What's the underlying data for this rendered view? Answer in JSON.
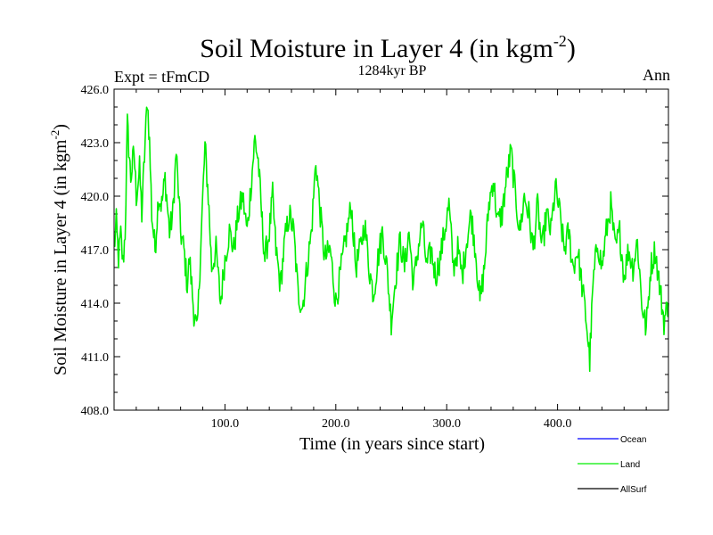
{
  "chart_data": {
    "type": "line",
    "title": "Soil Moisture in Layer 4 (in kgm",
    "title_sup": "-2",
    "title_close": ")",
    "subtitle": "1284kyr BP",
    "left_label": "Expt = tFmCD",
    "right_label": "Ann",
    "xlabel": "Time (in years since start)",
    "ylabel": "Soil Moisture in Layer 4 (in kgm",
    "ylabel_sup": "-2",
    "ylabel_close": ")",
    "xlim": [
      0,
      500
    ],
    "ylim": [
      408,
      426
    ],
    "x_ticks": [
      100,
      200,
      300,
      400
    ],
    "x_tick_labels": [
      "100.0",
      "200.0",
      "300.0",
      "400.0"
    ],
    "y_ticks": [
      408,
      411,
      414,
      417,
      420,
      423,
      426
    ],
    "y_tick_labels": [
      "408.0",
      "411.0",
      "414.0",
      "417.0",
      "420.0",
      "423.0",
      "426.0"
    ],
    "legend": [
      {
        "name": "Ocean",
        "color": "#0000ff"
      },
      {
        "name": "Land",
        "color": "#00ee00"
      },
      {
        "name": "AllSurf",
        "color": "#000000"
      }
    ],
    "series": [
      {
        "name": "Land",
        "color": "#00ee00",
        "x_start": 0,
        "x_end": 500,
        "anchors": [
          [
            0,
            417.0
          ],
          [
            2,
            418.5
          ],
          [
            4,
            416.5
          ],
          [
            6,
            417.8
          ],
          [
            8,
            416.2
          ],
          [
            10,
            418.0
          ],
          [
            12,
            424.0
          ],
          [
            15,
            421.0
          ],
          [
            18,
            422.5
          ],
          [
            20,
            420.0
          ],
          [
            23,
            421.5
          ],
          [
            25,
            419.0
          ],
          [
            28,
            423.0
          ],
          [
            30,
            425.5
          ],
          [
            32,
            423.0
          ],
          [
            34,
            419.0
          ],
          [
            37,
            417.0
          ],
          [
            40,
            420.0
          ],
          [
            43,
            419.5
          ],
          [
            46,
            421.0
          ],
          [
            50,
            418.0
          ],
          [
            53,
            419.0
          ],
          [
            56,
            422.5
          ],
          [
            60,
            418.0
          ],
          [
            63,
            417.0
          ],
          [
            66,
            415.0
          ],
          [
            68,
            416.5
          ],
          [
            72,
            413.5
          ],
          [
            75,
            412.3
          ],
          [
            78,
            417.0
          ],
          [
            82,
            422.8
          ],
          [
            85,
            420.0
          ],
          [
            88,
            416.0
          ],
          [
            92,
            417.0
          ],
          [
            96,
            414.0
          ],
          [
            100,
            416.5
          ],
          [
            104,
            418.0
          ],
          [
            108,
            417.0
          ],
          [
            112,
            419.0
          ],
          [
            116,
            420.0
          ],
          [
            120,
            418.0
          ],
          [
            124,
            421.0
          ],
          [
            127,
            423.2
          ],
          [
            130,
            422.0
          ],
          [
            133,
            419.0
          ],
          [
            136,
            416.5
          ],
          [
            140,
            418.0
          ],
          [
            143,
            420.0
          ],
          [
            146,
            417.0
          ],
          [
            150,
            415.0
          ],
          [
            154,
            417.5
          ],
          [
            158,
            419.0
          ],
          [
            162,
            418.0
          ],
          [
            166,
            414.5
          ],
          [
            170,
            413.8
          ],
          [
            174,
            416.0
          ],
          [
            178,
            418.0
          ],
          [
            182,
            422.0
          ],
          [
            186,
            419.0
          ],
          [
            190,
            416.5
          ],
          [
            195,
            417.0
          ],
          [
            200,
            414.0
          ],
          [
            205,
            416.0
          ],
          [
            210,
            418.0
          ],
          [
            214,
            419.5
          ],
          [
            218,
            416.0
          ],
          [
            222,
            417.0
          ],
          [
            226,
            418.5
          ],
          [
            230,
            416.0
          ],
          [
            234,
            414.5
          ],
          [
            238,
            416.5
          ],
          [
            242,
            418.0
          ],
          [
            246,
            416.0
          ],
          [
            250,
            413.0
          ],
          [
            254,
            415.5
          ],
          [
            258,
            417.5
          ],
          [
            262,
            416.0
          ],
          [
            266,
            418.0
          ],
          [
            270,
            415.0
          ],
          [
            274,
            417.0
          ],
          [
            278,
            418.5
          ],
          [
            282,
            416.0
          ],
          [
            286,
            417.0
          ],
          [
            290,
            415.5
          ],
          [
            294,
            416.5
          ],
          [
            298,
            418.0
          ],
          [
            302,
            419.5
          ],
          [
            306,
            416.0
          ],
          [
            310,
            417.0
          ],
          [
            314,
            415.5
          ],
          [
            318,
            417.5
          ],
          [
            322,
            419.0
          ],
          [
            326,
            417.0
          ],
          [
            330,
            414.0
          ],
          [
            334,
            416.0
          ],
          [
            338,
            419.5
          ],
          [
            342,
            421.0
          ],
          [
            346,
            418.5
          ],
          [
            350,
            419.0
          ],
          [
            354,
            421.0
          ],
          [
            358,
            422.5
          ],
          [
            362,
            420.0
          ],
          [
            366,
            418.0
          ],
          [
            370,
            420.0
          ],
          [
            374,
            419.0
          ],
          [
            378,
            417.0
          ],
          [
            382,
            419.5
          ],
          [
            386,
            417.0
          ],
          [
            390,
            419.0
          ],
          [
            394,
            418.0
          ],
          [
            398,
            420.5
          ],
          [
            402,
            419.0
          ],
          [
            406,
            417.0
          ],
          [
            410,
            418.0
          ],
          [
            414,
            416.0
          ],
          [
            418,
            417.0
          ],
          [
            422,
            415.0
          ],
          [
            426,
            413.0
          ],
          [
            429,
            410.8
          ],
          [
            432,
            415.0
          ],
          [
            436,
            417.5
          ],
          [
            440,
            416.0
          ],
          [
            444,
            418.0
          ],
          [
            448,
            419.5
          ],
          [
            452,
            417.0
          ],
          [
            456,
            418.0
          ],
          [
            460,
            415.5
          ],
          [
            464,
            417.0
          ],
          [
            468,
            416.0
          ],
          [
            472,
            417.5
          ],
          [
            476,
            414.0
          ],
          [
            480,
            412.5
          ],
          [
            484,
            416.0
          ],
          [
            488,
            417.0
          ],
          [
            492,
            415.0
          ],
          [
            496,
            413.0
          ],
          [
            500,
            414.0
          ]
        ]
      }
    ]
  }
}
